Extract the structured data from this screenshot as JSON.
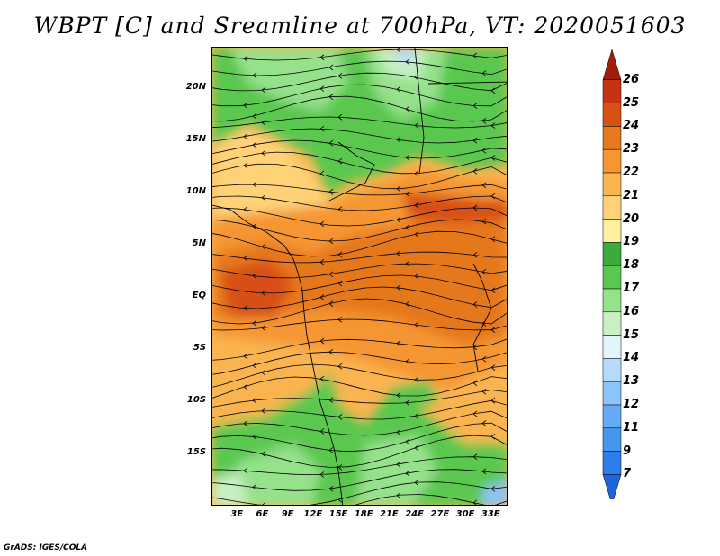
{
  "title": "WBPT [C] and Sreamline at 700hPa, VT: 2020051603",
  "footer": "GrADS: IGES/COLA",
  "map": {
    "lat_labels": [
      "20N",
      "15N",
      "10N",
      "5N",
      "EQ",
      "5S",
      "10S",
      "15S"
    ],
    "lon_labels": [
      "3E",
      "6E",
      "9E",
      "12E",
      "15E",
      "18E",
      "21E",
      "24E",
      "27E",
      "30E",
      "33E"
    ],
    "extent": {
      "lon_min": 0,
      "lon_max": 35,
      "lat_min": -20,
      "lat_max": 24
    }
  },
  "colorbar": {
    "labels": [
      "7",
      "9",
      "11",
      "12",
      "13",
      "14",
      "15",
      "16",
      "17",
      "18",
      "19",
      "20",
      "21",
      "22",
      "23",
      "24",
      "25",
      "26"
    ],
    "colors": [
      "#1e64dc",
      "#2d7ee8",
      "#4696f0",
      "#64aaf5",
      "#8cc3fa",
      "#b4dcfa",
      "#e1f5fa",
      "#c8f0c3",
      "#96e18c",
      "#5ac850",
      "#3caa3c",
      "#fff0a0",
      "#ffd278",
      "#fab450",
      "#f59632",
      "#e6781e",
      "#d75014",
      "#c83214",
      "#a01e0a"
    ]
  }
}
